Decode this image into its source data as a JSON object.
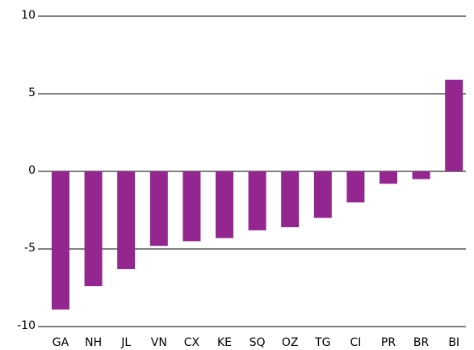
{
  "chart_data": {
    "type": "bar",
    "categories": [
      "GA",
      "NH",
      "JL",
      "VN",
      "CX",
      "KE",
      "SQ",
      "OZ",
      "TG",
      "CI",
      "PR",
      "BR",
      "BI"
    ],
    "values": [
      -8.9,
      -7.4,
      -6.3,
      -4.8,
      -4.5,
      -4.3,
      -3.8,
      -3.6,
      -3.0,
      -2.0,
      -0.8,
      -0.5,
      5.9
    ],
    "color": "#93278f",
    "ylim": [
      -10,
      10
    ],
    "yticks": [
      -10,
      -5,
      0,
      5,
      10
    ],
    "grid": true
  }
}
